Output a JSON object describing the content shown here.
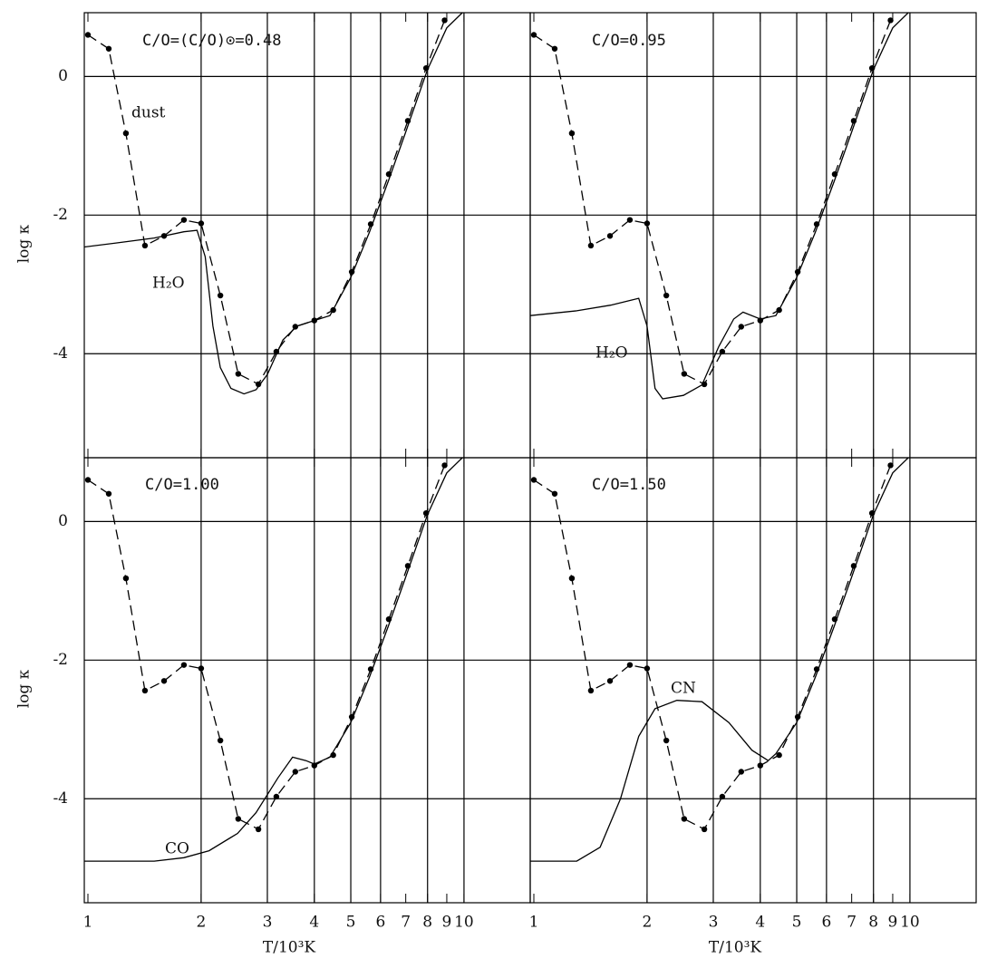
{
  "chart_data": [
    {
      "type": "line",
      "annotations": [
        "C/O=(C/O)⊙=0.48",
        "dust",
        "H₂O"
      ],
      "log_x": true,
      "xlim": [
        0.978,
        15
      ],
      "ylim": [
        -5.5,
        0.92
      ],
      "xticks": [
        1,
        2,
        3,
        4,
        5,
        6,
        7,
        8,
        9,
        10
      ],
      "xgrid": [
        2,
        3,
        4,
        5,
        6,
        8,
        10
      ],
      "yticks": [
        0,
        -2,
        -4
      ],
      "ylabel": "log κ",
      "series": [
        {
          "color": "#000",
          "dash": false,
          "markers": false,
          "x": [
            0.978,
            1.2,
            1.5,
            1.8,
            1.95,
            2.05,
            2.15,
            2.25,
            2.4,
            2.6,
            2.8,
            3.0,
            3.3,
            3.6,
            4.0,
            4.4,
            5.0,
            5.6,
            6.3,
            7.0,
            8.0,
            9.0,
            9.9
          ],
          "values": [
            -2.46,
            -2.4,
            -2.33,
            -2.24,
            -2.22,
            -2.6,
            -3.6,
            -4.2,
            -4.5,
            -4.58,
            -4.52,
            -4.3,
            -3.8,
            -3.6,
            -3.52,
            -3.45,
            -2.9,
            -2.25,
            -1.5,
            -0.8,
            0.1,
            0.7,
            0.92
          ]
        },
        {
          "color": "#000",
          "dash": true,
          "markers": true,
          "x": [
            1.0,
            1.136,
            1.262,
            1.418,
            1.594,
            1.8,
            2.0,
            2.25,
            2.51,
            2.84,
            3.17,
            3.56,
            4.0,
            4.49,
            5.03,
            5.65,
            6.31,
            7.09,
            7.93,
            8.88
          ],
          "values": [
            0.6,
            0.4,
            -0.82,
            -2.44,
            -2.3,
            -2.07,
            -2.12,
            -3.16,
            -4.29,
            -4.44,
            -3.97,
            -3.61,
            -3.52,
            -3.37,
            -2.82,
            -2.13,
            -1.41,
            -0.64,
            0.12,
            0.81
          ]
        }
      ]
    },
    {
      "type": "line",
      "annotations": [
        "C/O=0.95",
        "H₂O"
      ],
      "log_x": true,
      "xlim": [
        0.978,
        15
      ],
      "ylim": [
        -5.5,
        0.92
      ],
      "xticks": [
        1,
        2,
        3,
        4,
        5,
        6,
        7,
        8,
        9,
        10
      ],
      "xgrid": [
        2,
        3,
        4,
        5,
        6,
        8,
        10
      ],
      "yticks": [
        0,
        -2,
        -4
      ],
      "series": [
        {
          "color": "#000",
          "dash": false,
          "markers": false,
          "x": [
            0.978,
            1.3,
            1.6,
            1.9,
            2.0,
            2.1,
            2.2,
            2.5,
            2.8,
            3.1,
            3.4,
            3.6,
            4.0,
            4.4,
            5.0,
            5.6,
            6.3,
            7.0,
            8.0,
            9.0,
            9.9
          ],
          "values": [
            -3.45,
            -3.38,
            -3.3,
            -3.2,
            -3.6,
            -4.5,
            -4.65,
            -4.6,
            -4.45,
            -3.9,
            -3.5,
            -3.4,
            -3.5,
            -3.45,
            -2.9,
            -2.25,
            -1.5,
            -0.8,
            0.1,
            0.7,
            0.92
          ]
        },
        {
          "color": "#000",
          "dash": true,
          "markers": true,
          "x": [
            1.0,
            1.136,
            1.262,
            1.418,
            1.594,
            1.8,
            2.0,
            2.25,
            2.51,
            2.84,
            3.17,
            3.56,
            4.0,
            4.49,
            5.03,
            5.65,
            6.31,
            7.09,
            7.93,
            8.88
          ],
          "values": [
            0.6,
            0.4,
            -0.82,
            -2.44,
            -2.3,
            -2.07,
            -2.12,
            -3.16,
            -4.29,
            -4.44,
            -3.97,
            -3.61,
            -3.52,
            -3.37,
            -2.82,
            -2.13,
            -1.41,
            -0.64,
            0.12,
            0.81
          ]
        }
      ]
    },
    {
      "type": "line",
      "annotations": [
        "C/O=1.00",
        "CO"
      ],
      "log_x": true,
      "xlim": [
        0.978,
        15
      ],
      "ylim": [
        -5.5,
        0.92
      ],
      "xticks": [
        1,
        2,
        3,
        4,
        5,
        6,
        7,
        8,
        9,
        10
      ],
      "xgrid": [
        2,
        3,
        4,
        5,
        6,
        8,
        10
      ],
      "yticks": [
        0,
        -2,
        -4
      ],
      "xlabel": "T/10³K",
      "ylabel": "log κ",
      "series": [
        {
          "color": "#000",
          "dash": false,
          "markers": false,
          "x": [
            0.978,
            1.5,
            1.8,
            2.1,
            2.5,
            2.8,
            3.2,
            3.5,
            3.8,
            4.0,
            4.4,
            5.0,
            5.6,
            6.3,
            7.0,
            8.0,
            9.0,
            9.9
          ],
          "values": [
            -4.9,
            -4.9,
            -4.85,
            -4.75,
            -4.5,
            -4.2,
            -3.7,
            -3.4,
            -3.45,
            -3.5,
            -3.4,
            -2.9,
            -2.25,
            -1.5,
            -0.8,
            0.1,
            0.7,
            0.92
          ]
        },
        {
          "color": "#000",
          "dash": true,
          "markers": true,
          "x": [
            1.0,
            1.136,
            1.262,
            1.418,
            1.594,
            1.8,
            2.0,
            2.25,
            2.51,
            2.84,
            3.17,
            3.56,
            4.0,
            4.49,
            5.03,
            5.65,
            6.31,
            7.09,
            7.93,
            8.88
          ],
          "values": [
            0.6,
            0.4,
            -0.82,
            -2.44,
            -2.3,
            -2.07,
            -2.12,
            -3.16,
            -4.29,
            -4.44,
            -3.97,
            -3.61,
            -3.52,
            -3.37,
            -2.82,
            -2.13,
            -1.41,
            -0.64,
            0.12,
            0.81
          ]
        }
      ]
    },
    {
      "type": "line",
      "annotations": [
        "C/O=1.50",
        "CN"
      ],
      "log_x": true,
      "xlim": [
        0.978,
        15
      ],
      "ylim": [
        -5.5,
        0.92
      ],
      "xticks": [
        1,
        2,
        3,
        4,
        5,
        6,
        7,
        8,
        9,
        10
      ],
      "xgrid": [
        2,
        3,
        4,
        5,
        6,
        8,
        10
      ],
      "yticks": [
        0,
        -2,
        -4
      ],
      "xlabel": "T/10³K",
      "series": [
        {
          "color": "#000",
          "dash": false,
          "markers": false,
          "x": [
            0.978,
            1.3,
            1.5,
            1.7,
            1.9,
            2.1,
            2.4,
            2.8,
            3.3,
            3.8,
            4.2,
            4.4,
            5.0,
            5.6,
            6.3,
            7.0,
            8.0,
            9.0,
            9.9
          ],
          "values": [
            -4.9,
            -4.9,
            -4.7,
            -4.0,
            -3.1,
            -2.7,
            -2.58,
            -2.6,
            -2.9,
            -3.3,
            -3.45,
            -3.35,
            -2.9,
            -2.25,
            -1.5,
            -0.8,
            0.1,
            0.7,
            0.92
          ]
        },
        {
          "color": "#000",
          "dash": true,
          "markers": true,
          "x": [
            1.0,
            1.136,
            1.262,
            1.418,
            1.594,
            1.8,
            2.0,
            2.25,
            2.51,
            2.84,
            3.17,
            3.56,
            4.0,
            4.49,
            5.03,
            5.65,
            6.31,
            7.09,
            7.93,
            8.88
          ],
          "values": [
            0.6,
            0.4,
            -0.82,
            -2.44,
            -2.3,
            -2.07,
            -2.12,
            -3.16,
            -4.29,
            -4.44,
            -3.97,
            -3.61,
            -3.52,
            -3.37,
            -2.82,
            -2.13,
            -1.41,
            -0.64,
            0.12,
            0.81
          ]
        }
      ]
    }
  ]
}
